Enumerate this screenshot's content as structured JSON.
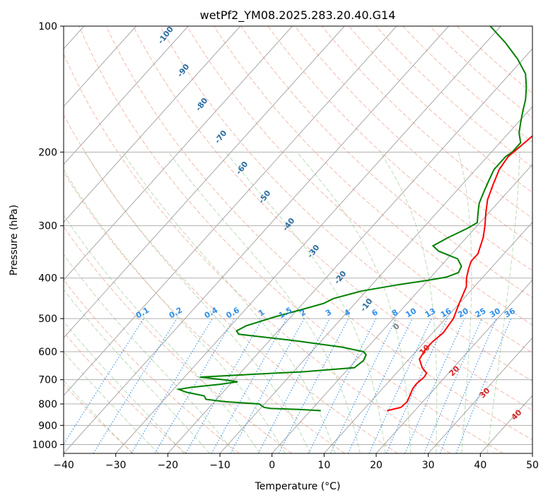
{
  "chart_data": {
    "type": "skewt",
    "title": "wetPf2_YM08.2025.283.20.40.G14",
    "xlabel": "Temperature (°C)",
    "ylabel": "Pressure (hPa)",
    "xlim": [
      -40,
      50
    ],
    "ylim": [
      1050,
      100
    ],
    "x_ticks": [
      -40,
      -30,
      -20,
      -10,
      0,
      10,
      20,
      30,
      40,
      50
    ],
    "x_tick_labels": [
      "−40",
      "−30",
      "−20",
      "−10",
      "0",
      "10",
      "20",
      "30",
      "40",
      "50"
    ],
    "y_ticks": [
      100,
      200,
      300,
      400,
      500,
      600,
      700,
      800,
      900,
      1000
    ],
    "y_tick_labels": [
      "100",
      "200",
      "300",
      "400",
      "500",
      "600",
      "700",
      "800",
      "900",
      "1000"
    ],
    "dry_adiabat_labels": [
      {
        "text": "-100",
        "t": -100
      },
      {
        "text": "-90",
        "t": -90
      },
      {
        "text": "-80",
        "t": -80
      },
      {
        "text": "-70",
        "t": -70
      },
      {
        "text": "-60",
        "t": -60
      },
      {
        "text": "-50",
        "t": -50
      },
      {
        "text": "-40",
        "t": -40
      },
      {
        "text": "-30",
        "t": -30
      },
      {
        "text": "-20",
        "t": -20
      },
      {
        "text": "-10",
        "t": -10
      }
    ],
    "mixing_ratio_labels": [
      "0.1",
      "0.2",
      "0.4",
      "0.6",
      "1",
      "1.5",
      "2",
      "3",
      "4",
      "6",
      "8",
      "10",
      "13",
      "16",
      "20",
      "25",
      "30",
      "36"
    ],
    "mixing_ratio_values": [
      0.1,
      0.2,
      0.4,
      0.6,
      1,
      1.5,
      2,
      3,
      4,
      6,
      8,
      10,
      13,
      16,
      20,
      25,
      30,
      36
    ],
    "moist_adiabat_labels": [
      {
        "text": "0",
        "color": "#808080"
      },
      {
        "text": "10",
        "color": "#d62728"
      },
      {
        "text": "20",
        "color": "#d62728"
      },
      {
        "text": "30",
        "color": "#d62728"
      },
      {
        "text": "40",
        "color": "#d62728"
      }
    ],
    "series": [
      {
        "name": "Temperature",
        "color": "#ff0000",
        "points": [
          [
            830,
            14.7
          ],
          [
            815,
            16.8
          ],
          [
            790,
            17.0
          ],
          [
            765,
            16.5
          ],
          [
            735,
            15.8
          ],
          [
            715,
            15.7
          ],
          [
            690,
            16.0
          ],
          [
            675,
            15.8
          ],
          [
            655,
            14.0
          ],
          [
            625,
            12.0
          ],
          [
            595,
            11.5
          ],
          [
            570,
            11.5
          ],
          [
            540,
            12.0
          ],
          [
            500,
            11.5
          ],
          [
            460,
            10.0
          ],
          [
            420,
            8.5
          ],
          [
            400,
            7.0
          ],
          [
            380,
            5.8
          ],
          [
            365,
            5.0
          ],
          [
            350,
            5.0
          ],
          [
            320,
            3.2
          ],
          [
            300,
            1.5
          ],
          [
            280,
            -0.5
          ],
          [
            260,
            -2.5
          ],
          [
            240,
            -4.0
          ],
          [
            220,
            -5.5
          ],
          [
            205,
            -6.0
          ],
          [
            195,
            -5.5
          ],
          [
            185,
            -5.0
          ],
          [
            175,
            -4.5
          ],
          [
            165,
            -5.0
          ],
          [
            155,
            -6.0
          ],
          [
            145,
            -7.5
          ],
          [
            135,
            -10.5
          ],
          [
            125,
            -13.0
          ],
          [
            115,
            -16.0
          ],
          [
            100,
            -22.0
          ]
        ]
      },
      {
        "name": "Dewpoint",
        "color": "#008000",
        "points": [
          [
            830,
            2.0
          ],
          [
            825,
            -2.0
          ],
          [
            820,
            -8.0
          ],
          [
            815,
            -9.5
          ],
          [
            800,
            -11.0
          ],
          [
            790,
            -18.0
          ],
          [
            780,
            -22.0
          ],
          [
            765,
            -23.0
          ],
          [
            750,
            -27.0
          ],
          [
            738,
            -29.0
          ],
          [
            730,
            -27.0
          ],
          [
            718,
            -22.0
          ],
          [
            708,
            -19.0
          ],
          [
            700,
            -22.0
          ],
          [
            690,
            -27.0
          ],
          [
            680,
            -18.0
          ],
          [
            670,
            -8.0
          ],
          [
            655,
            1.0
          ],
          [
            630,
            1.5
          ],
          [
            610,
            1.0
          ],
          [
            600,
            0.0
          ],
          [
            585,
            -5.0
          ],
          [
            565,
            -15.0
          ],
          [
            545,
            -27.0
          ],
          [
            535,
            -28.0
          ],
          [
            520,
            -27.0
          ],
          [
            495,
            -23.0
          ],
          [
            475,
            -19.0
          ],
          [
            460,
            -16.0
          ],
          [
            448,
            -15.0
          ],
          [
            430,
            -11.0
          ],
          [
            415,
            -5.0
          ],
          [
            405,
            0.0
          ],
          [
            398,
            3.0
          ],
          [
            388,
            4.5
          ],
          [
            375,
            4.0
          ],
          [
            360,
            2.0
          ],
          [
            345,
            -3.0
          ],
          [
            335,
            -5.0
          ],
          [
            320,
            -3.5
          ],
          [
            305,
            -1.5
          ],
          [
            295,
            -0.5
          ],
          [
            285,
            -1.5
          ],
          [
            275,
            -2.5
          ],
          [
            265,
            -3.5
          ],
          [
            250,
            -4.5
          ],
          [
            235,
            -5.5
          ],
          [
            220,
            -6.5
          ],
          [
            205,
            -6.5
          ],
          [
            200,
            -6.0
          ],
          [
            190,
            -6.0
          ],
          [
            180,
            -8.0
          ],
          [
            170,
            -9.5
          ],
          [
            160,
            -11.0
          ],
          [
            150,
            -12.5
          ],
          [
            140,
            -14.5
          ],
          [
            130,
            -17.0
          ],
          [
            120,
            -21.0
          ],
          [
            110,
            -26.0
          ],
          [
            100,
            -32.0
          ]
        ]
      }
    ]
  }
}
